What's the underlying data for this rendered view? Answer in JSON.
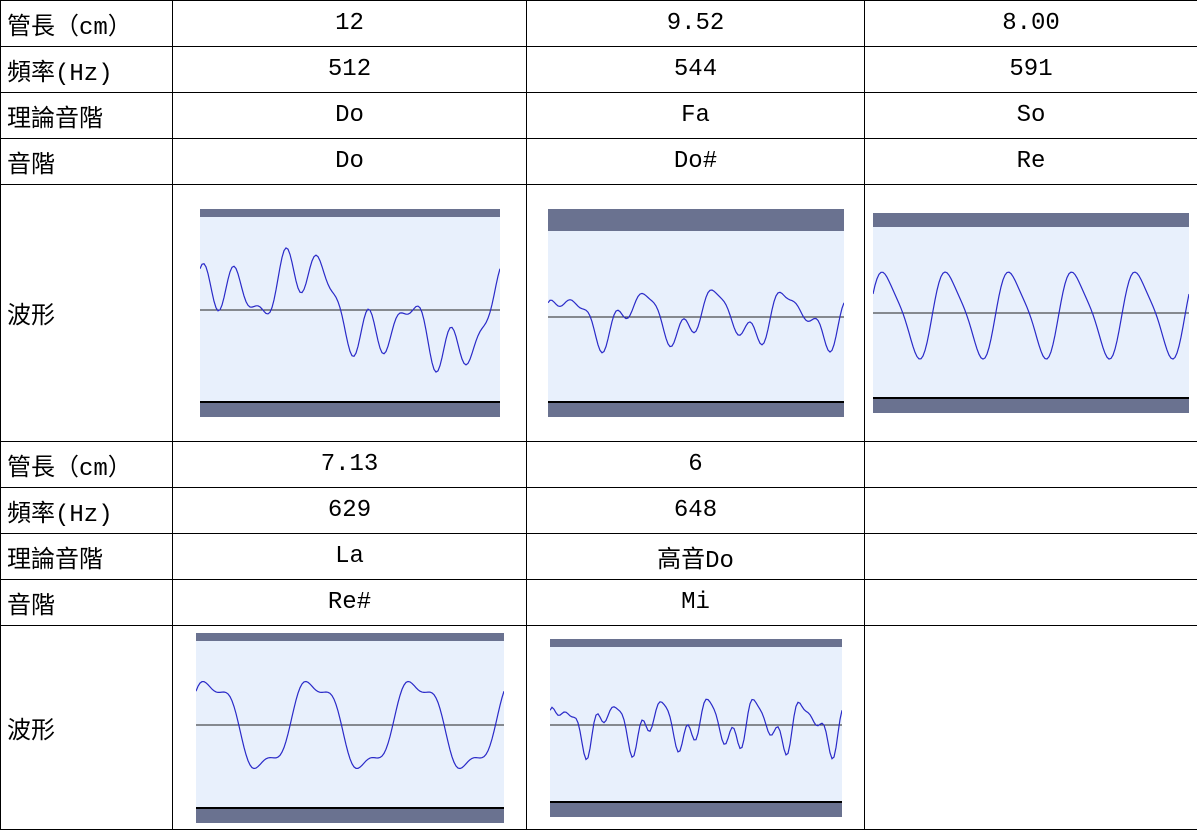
{
  "table": {
    "rows": [
      [
        "管長（cm）",
        "12",
        "9.52",
        "8.00"
      ],
      [
        "頻率(Hz)",
        "512",
        "544",
        "591"
      ],
      [
        "理論音階",
        "Do",
        "Fa",
        "So"
      ],
      [
        "音階",
        "Do",
        "Do#",
        "Re"
      ],
      [
        "波形"
      ],
      [
        "管長（cm）",
        "7.13",
        "6"
      ],
      [
        "頻率(Hz)",
        "629",
        "648"
      ],
      [
        "理論音階",
        "La",
        "高音Do"
      ],
      [
        "音階",
        "Re#",
        "Mi"
      ],
      [
        "波形"
      ]
    ]
  }
}
